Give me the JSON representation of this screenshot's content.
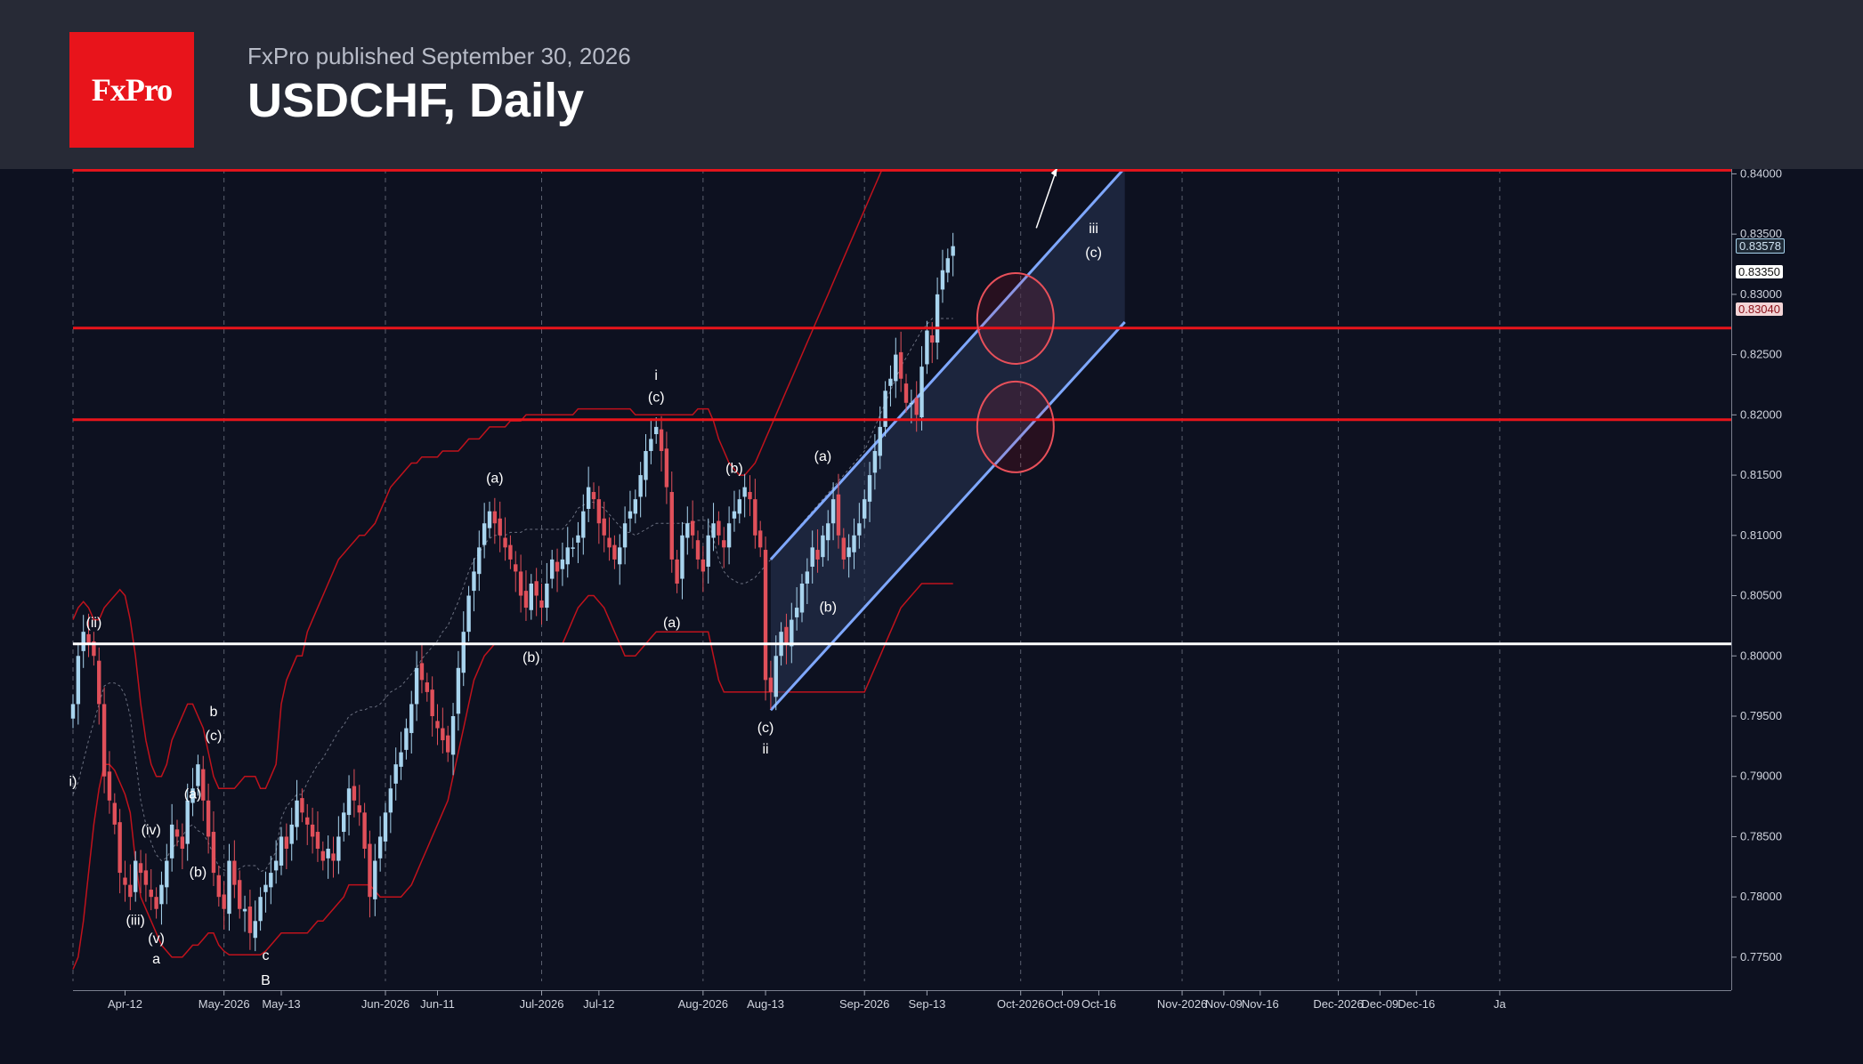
{
  "header": {
    "logo_text": "FxPro",
    "published": "FxPro published September 30, 2026",
    "title": "USDCHF, Daily"
  },
  "colors": {
    "bull": "#a8d4ee",
    "bear": "#e0505a",
    "band": "#c0121c",
    "level": "#e8141b",
    "support": "#ffffff",
    "channel": "#7fa8ff"
  },
  "price_tags": {
    "tag1": "0.83578",
    "tag2": "0.83350",
    "tag3": "0.83040"
  },
  "chart_data": {
    "type": "candlestick",
    "instrument": "USDCHF",
    "timeframe": "Daily",
    "ylim": [
      0.773,
      0.8404
    ],
    "y_ticks": [
      "0.84000",
      "0.83500",
      "0.83000",
      "0.82500",
      "0.82000",
      "0.81500",
      "0.81000",
      "0.80500",
      "0.80000",
      "0.79500",
      "0.79000",
      "0.78500",
      "0.78000",
      "0.77500"
    ],
    "x_ticks": [
      {
        "label": "Apr-12",
        "day": 10
      },
      {
        "label": "May-2026",
        "day": 29
      },
      {
        "label": "May-13",
        "day": 40
      },
      {
        "label": "Jun-2026",
        "day": 60
      },
      {
        "label": "Jun-11",
        "day": 70
      },
      {
        "label": "Jul-2026",
        "day": 90
      },
      {
        "label": "Jul-12",
        "day": 101
      },
      {
        "label": "Aug-2026",
        "day": 121
      },
      {
        "label": "Aug-13",
        "day": 133
      },
      {
        "label": "Sep-2026",
        "day": 152
      },
      {
        "label": "Sep-13",
        "day": 164
      },
      {
        "label": "Oct-2026",
        "day": 182
      },
      {
        "label": "Oct-09",
        "day": 190
      },
      {
        "label": "Oct-16",
        "day": 197
      },
      {
        "label": "Nov-2026",
        "day": 213
      },
      {
        "label": "Nov-09",
        "day": 221
      },
      {
        "label": "Nov-16",
        "day": 228
      },
      {
        "label": "Dec-2026",
        "day": 243
      },
      {
        "label": "Dec-09",
        "day": 251
      },
      {
        "label": "Dec-16",
        "day": 258
      },
      {
        "label": "Ja",
        "day": 274
      }
    ],
    "vertical_grid_days": [
      0,
      29,
      60,
      90,
      121,
      152,
      182,
      213,
      243,
      274
    ],
    "horizontal_levels": [
      {
        "value": 0.8403,
        "role": "resistance"
      },
      {
        "value": 0.8272,
        "role": "resistance"
      },
      {
        "value": 0.8196,
        "role": "resistance"
      },
      {
        "value": 0.801,
        "role": "support"
      }
    ],
    "closes": [
      0.796,
      0.8,
      0.802,
      0.801,
      0.8,
      0.796,
      0.79,
      0.788,
      0.786,
      0.782,
      0.781,
      0.78,
      0.783,
      0.782,
      0.781,
      0.78,
      0.779,
      0.781,
      0.783,
      0.786,
      0.785,
      0.784,
      0.788,
      0.789,
      0.791,
      0.788,
      0.785,
      0.782,
      0.78,
      0.779,
      0.783,
      0.781,
      0.779,
      0.779,
      0.777,
      0.778,
      0.78,
      0.781,
      0.782,
      0.783,
      0.785,
      0.784,
      0.786,
      0.788,
      0.787,
      0.786,
      0.785,
      0.784,
      0.783,
      0.784,
      0.783,
      0.785,
      0.787,
      0.789,
      0.788,
      0.787,
      0.784,
      0.78,
      0.783,
      0.785,
      0.787,
      0.789,
      0.791,
      0.792,
      0.794,
      0.796,
      0.799,
      0.798,
      0.797,
      0.795,
      0.794,
      0.793,
      0.792,
      0.795,
      0.799,
      0.802,
      0.805,
      0.807,
      0.809,
      0.811,
      0.812,
      0.811,
      0.81,
      0.809,
      0.808,
      0.807,
      0.805,
      0.804,
      0.806,
      0.805,
      0.804,
      0.806,
      0.808,
      0.807,
      0.808,
      0.809,
      0.809,
      0.81,
      0.812,
      0.814,
      0.813,
      0.811,
      0.81,
      0.809,
      0.808,
      0.809,
      0.811,
      0.812,
      0.813,
      0.815,
      0.817,
      0.818,
      0.819,
      0.817,
      0.814,
      0.808,
      0.806,
      0.81,
      0.811,
      0.81,
      0.808,
      0.807,
      0.81,
      0.811,
      0.81,
      0.809,
      0.811,
      0.812,
      0.813,
      0.814,
      0.813,
      0.81,
      0.809,
      0.798,
      0.797,
      0.8,
      0.802,
      0.801,
      0.803,
      0.804,
      0.806,
      0.807,
      0.809,
      0.808,
      0.81,
      0.811,
      0.813,
      0.81,
      0.808,
      0.809,
      0.81,
      0.811,
      0.813,
      0.815,
      0.817,
      0.819,
      0.822,
      0.823,
      0.825,
      0.823,
      0.821,
      0.821,
      0.82,
      0.824,
      0.827,
      0.826,
      0.83,
      0.832,
      0.833,
      0.834
    ],
    "upper_band": [
      0.803,
      0.804,
      0.8045,
      0.804,
      0.803,
      0.803,
      0.804,
      0.8045,
      0.805,
      0.8055,
      0.805,
      0.803,
      0.8,
      0.796,
      0.793,
      0.791,
      0.79,
      0.79,
      0.791,
      0.793,
      0.794,
      0.795,
      0.796,
      0.796,
      0.795,
      0.794,
      0.792,
      0.79,
      0.789,
      0.789,
      0.789,
      0.789,
      0.7895,
      0.79,
      0.79,
      0.79,
      0.789,
      0.789,
      0.79,
      0.791,
      0.796,
      0.798,
      0.799,
      0.8,
      0.8,
      0.802,
      0.803,
      0.804,
      0.805,
      0.806,
      0.807,
      0.808,
      0.8085,
      0.809,
      0.8095,
      0.81,
      0.81,
      0.8105,
      0.811,
      0.812,
      0.813,
      0.814,
      0.8145,
      0.815,
      0.8155,
      0.816,
      0.816,
      0.8165,
      0.8165,
      0.8165,
      0.8165,
      0.817,
      0.817,
      0.817,
      0.817,
      0.8175,
      0.818,
      0.818,
      0.818,
      0.8185,
      0.819,
      0.819,
      0.819,
      0.819,
      0.8195,
      0.8195,
      0.8195,
      0.82,
      0.82,
      0.82,
      0.82,
      0.82,
      0.82,
      0.82,
      0.82,
      0.82,
      0.82,
      0.8205,
      0.8205,
      0.8205,
      0.8205,
      0.8205,
      0.8205,
      0.8205,
      0.8205,
      0.8205,
      0.8205,
      0.8205,
      0.82,
      0.82,
      0.82,
      0.82,
      0.82,
      0.82,
      0.82,
      0.82,
      0.82,
      0.82,
      0.82,
      0.82,
      0.8205,
      0.8205,
      0.8205,
      0.8195,
      0.818,
      0.817,
      0.816,
      0.8155,
      0.815,
      0.815,
      0.8155,
      0.816,
      0.817,
      0.818,
      0.819,
      0.82,
      0.821,
      0.822,
      0.823,
      0.824,
      0.825,
      0.826,
      0.827,
      0.828,
      0.829,
      0.83,
      0.831,
      0.832,
      0.833,
      0.834,
      0.835,
      0.836,
      0.837,
      0.838,
      0.839,
      0.84,
      0.841,
      0.842,
      0.843,
      0.844,
      0.845,
      0.846,
      0.847,
      0.848,
      0.849,
      0.85,
      0.85,
      0.85,
      0.85,
      0.85
    ],
    "lower_band": [
      0.774,
      0.775,
      0.778,
      0.782,
      0.786,
      0.789,
      0.791,
      0.791,
      0.7905,
      0.7895,
      0.7885,
      0.787,
      0.783,
      0.78,
      0.779,
      0.778,
      0.777,
      0.776,
      0.7755,
      0.775,
      0.775,
      0.775,
      0.7755,
      0.776,
      0.776,
      0.7765,
      0.777,
      0.777,
      0.776,
      0.7755,
      0.7752,
      0.7752,
      0.7752,
      0.7752,
      0.7752,
      0.7752,
      0.7752,
      0.7755,
      0.776,
      0.7765,
      0.777,
      0.777,
      0.777,
      0.777,
      0.777,
      0.777,
      0.7775,
      0.778,
      0.778,
      0.7785,
      0.779,
      0.7795,
      0.78,
      0.781,
      0.781,
      0.781,
      0.781,
      0.781,
      0.7805,
      0.78,
      0.78,
      0.78,
      0.78,
      0.78,
      0.7805,
      0.781,
      0.782,
      0.783,
      0.784,
      0.785,
      0.786,
      0.787,
      0.788,
      0.79,
      0.792,
      0.794,
      0.796,
      0.798,
      0.799,
      0.8,
      0.8005,
      0.801,
      0.801,
      0.801,
      0.801,
      0.801,
      0.801,
      0.801,
      0.801,
      0.801,
      0.801,
      0.801,
      0.801,
      0.801,
      0.801,
      0.802,
      0.803,
      0.804,
      0.8045,
      0.805,
      0.805,
      0.8045,
      0.804,
      0.803,
      0.802,
      0.801,
      0.8,
      0.8,
      0.8,
      0.8005,
      0.801,
      0.8015,
      0.802,
      0.802,
      0.802,
      0.802,
      0.802,
      0.802,
      0.802,
      0.802,
      0.802,
      0.802,
      0.802,
      0.8,
      0.798,
      0.797,
      0.797,
      0.797,
      0.797,
      0.797,
      0.797,
      0.797,
      0.797,
      0.797,
      0.797,
      0.797,
      0.797,
      0.797,
      0.797,
      0.797,
      0.797,
      0.797,
      0.797,
      0.797,
      0.797,
      0.797,
      0.797,
      0.797,
      0.797,
      0.797,
      0.797,
      0.797,
      0.797,
      0.798,
      0.799,
      0.8,
      0.801,
      0.802,
      0.803,
      0.804,
      0.8045,
      0.805,
      0.8055,
      0.806,
      0.806,
      0.806,
      0.806,
      0.806,
      0.806,
      0.806
    ],
    "channel": {
      "upper": [
        {
          "day": 134,
          "value": 0.808
        },
        {
          "day": 202,
          "value": 0.8405
        }
      ],
      "lower": [
        {
          "day": 134,
          "value": 0.7955
        },
        {
          "day": 202,
          "value": 0.8277
        }
      ]
    },
    "circles": [
      {
        "day": 181,
        "value": 0.828
      },
      {
        "day": 181,
        "value": 0.819
      }
    ],
    "arrow": {
      "from": {
        "day": 185,
        "value": 0.8355
      },
      "to": {
        "day": 189,
        "value": 0.8405
      }
    },
    "wave_labels": [
      {
        "text": "(ii)",
        "day": 4,
        "value": 0.8027
      },
      {
        "text": "i)",
        "day": 0,
        "value": 0.7895
      },
      {
        "text": "(iv)",
        "day": 15,
        "value": 0.7855
      },
      {
        "text": "(iii)",
        "day": 12,
        "value": 0.778
      },
      {
        "text": "(v)",
        "day": 16,
        "value": 0.7765
      },
      {
        "text": "a",
        "day": 16,
        "value": 0.7748
      },
      {
        "text": "(a)",
        "day": 23,
        "value": 0.7885
      },
      {
        "text": "(b)",
        "day": 24,
        "value": 0.782
      },
      {
        "text": "b",
        "day": 27,
        "value": 0.7953
      },
      {
        "text": "(c)",
        "day": 27,
        "value": 0.7933
      },
      {
        "text": "c",
        "day": 37,
        "value": 0.7751
      },
      {
        "text": "B",
        "day": 37,
        "value": 0.773
      },
      {
        "text": "(a)",
        "day": 81,
        "value": 0.8147
      },
      {
        "text": "(b)",
        "day": 88,
        "value": 0.7998
      },
      {
        "text": "i",
        "day": 112,
        "value": 0.8232
      },
      {
        "text": "(c)",
        "day": 112,
        "value": 0.8214
      },
      {
        "text": "(a)",
        "day": 115,
        "value": 0.8027
      },
      {
        "text": "(b)",
        "day": 127,
        "value": 0.8155
      },
      {
        "text": "(a)",
        "day": 144,
        "value": 0.8165
      },
      {
        "text": "(b)",
        "day": 145,
        "value": 0.804
      },
      {
        "text": "(c)",
        "day": 133,
        "value": 0.794
      },
      {
        "text": "ii",
        "day": 133,
        "value": 0.7922
      },
      {
        "text": "iii",
        "day": 196,
        "value": 0.8354
      },
      {
        "text": "(c)",
        "day": 196,
        "value": 0.8334
      }
    ]
  }
}
